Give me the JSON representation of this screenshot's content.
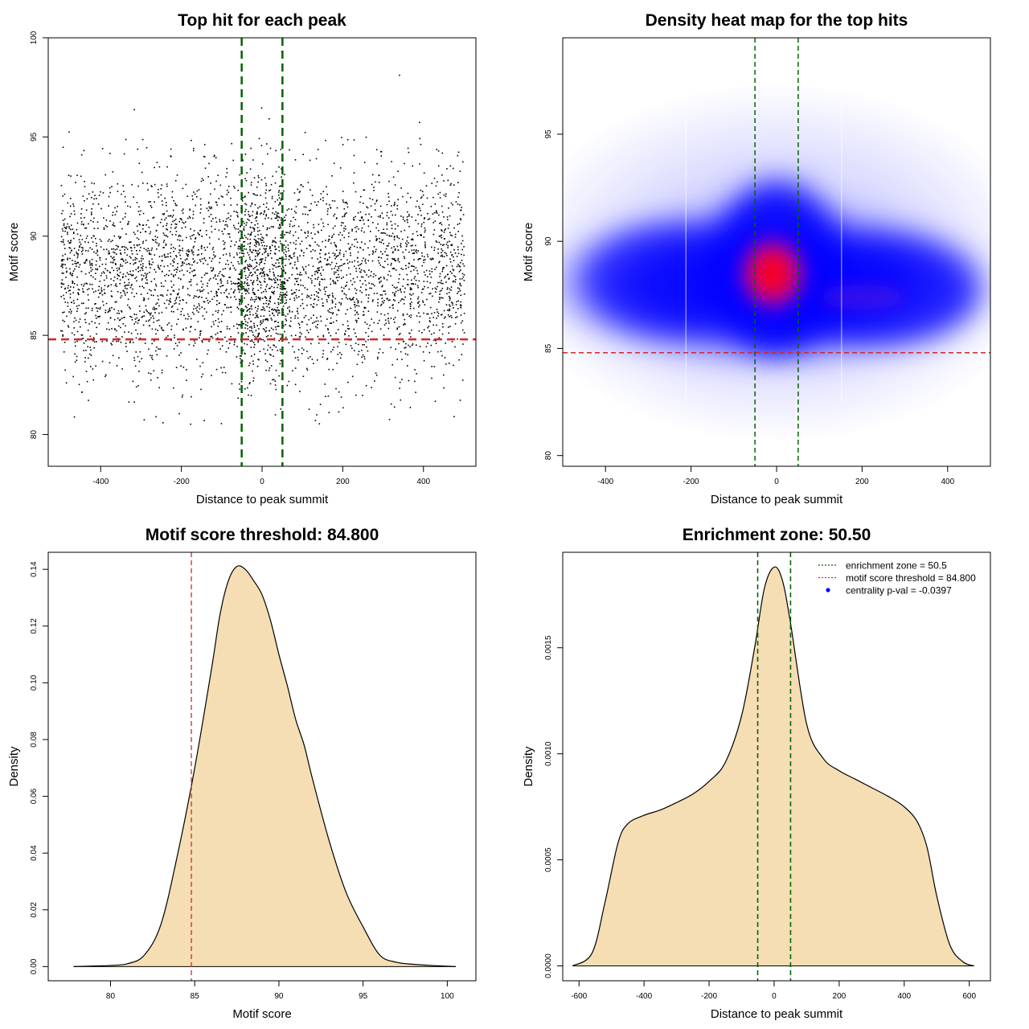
{
  "chart_data": [
    {
      "id": "p1",
      "type": "scatter",
      "title": "Top hit for each peak",
      "xlabel": "Distance to peak summit",
      "ylabel": "Motif score",
      "xlim": [
        -530,
        530
      ],
      "ylim": [
        78.4,
        100
      ],
      "xticks": [
        -400,
        -200,
        0,
        200,
        400
      ],
      "yticks": [
        80,
        85,
        90,
        95,
        100
      ],
      "point_summary": {
        "n_points": 4000,
        "x_range": [
          -500,
          500
        ],
        "score_center": 88.2,
        "score_sd": 2.6,
        "central_enrichment_range": [
          -60,
          60
        ]
      },
      "vlines": [
        -50.5,
        50.5
      ],
      "hline": 84.8,
      "colors": {
        "points": "#000000",
        "vlines": "#006400",
        "hline": "#d62728"
      }
    },
    {
      "id": "p2",
      "type": "heatmap",
      "title": "Density heat map for the top hits",
      "xlabel": "Distance to peak summit",
      "ylabel": "Motif score",
      "xlim": [
        -500,
        500
      ],
      "ylim": [
        79.5,
        99.5
      ],
      "xticks": [
        -400,
        -200,
        0,
        200,
        400
      ],
      "yticks": [
        80,
        85,
        90,
        95
      ],
      "density_peak": {
        "x": 0,
        "y": 88.5
      },
      "vlines": [
        -50.5,
        50.5
      ],
      "hline": 84.8,
      "colors": {
        "low": "#ffffff",
        "mid": "#0000ff",
        "high": "#ff0000",
        "vlines": "#006400",
        "hline": "#d62728"
      }
    },
    {
      "id": "p3",
      "type": "area",
      "title": "Motif score threshold: 84.800",
      "xlabel": "Motif score",
      "ylabel": "Density",
      "xlim": [
        76.3,
        101.7
      ],
      "ylim": [
        -0.005,
        0.146
      ],
      "xticks": [
        80,
        85,
        90,
        95,
        100
      ],
      "yticks": [
        0.0,
        0.02,
        0.04,
        0.06,
        0.08,
        0.1,
        0.12,
        0.14
      ],
      "x": [
        77.8,
        79,
        80,
        81,
        82,
        83,
        84,
        85,
        86,
        86.5,
        87,
        87.5,
        88,
        88.5,
        89,
        89.5,
        90,
        90.5,
        91,
        91.5,
        92,
        93,
        94,
        95,
        96,
        97,
        98,
        99,
        100.5
      ],
      "y": [
        0.0,
        0.0002,
        0.0004,
        0.001,
        0.004,
        0.015,
        0.04,
        0.07,
        0.105,
        0.124,
        0.136,
        0.141,
        0.14,
        0.136,
        0.131,
        0.122,
        0.11,
        0.099,
        0.087,
        0.078,
        0.066,
        0.044,
        0.026,
        0.014,
        0.004,
        0.0015,
        0.0008,
        0.0004,
        0.0
      ],
      "vline": 84.8,
      "colors": {
        "fill": "#f5deb3",
        "line": "#000000",
        "vline": "#d62728"
      }
    },
    {
      "id": "p4",
      "type": "area",
      "title": "Enrichment zone: 50.50",
      "xlabel": "Distance to peak summit",
      "ylabel": "Density",
      "xlim": [
        -650,
        665
      ],
      "ylim": [
        -7e-05,
        0.00195
      ],
      "xticks": [
        -600,
        -400,
        -200,
        0,
        200,
        400,
        600
      ],
      "yticks": [
        0.0,
        0.0005,
        0.001,
        0.0015
      ],
      "ytick_labels": [
        "0.0000",
        "0.0005",
        "0.0010",
        "0.0015"
      ],
      "x": [
        -620,
        -560,
        -520,
        -480,
        -450,
        -400,
        -350,
        -300,
        -250,
        -200,
        -150,
        -100,
        -60,
        -30,
        0,
        25,
        50,
        100,
        150,
        200,
        250,
        300,
        350,
        400,
        440,
        470,
        500,
        540,
        580,
        615
      ],
      "y": [
        0,
        6e-05,
        0.0003,
        0.00058,
        0.00067,
        0.00071,
        0.000735,
        0.00077,
        0.00081,
        0.00087,
        0.00096,
        0.00118,
        0.0015,
        0.00178,
        0.00188,
        0.00182,
        0.00162,
        0.00114,
        0.00098,
        0.00092,
        0.00088,
        0.00084,
        0.0008,
        0.00075,
        0.00068,
        0.00056,
        0.00033,
        0.0001,
        2e-05,
        0
      ],
      "vlines": [
        -50.5,
        50.5
      ],
      "legend": {
        "position": "top-right",
        "entries": [
          {
            "label": "enrichment zone = 50.5",
            "style": "dotted-line",
            "color": "#006400"
          },
          {
            "label": "motif score threshold = 84.800",
            "style": "dotted-line",
            "color": "#d62728"
          },
          {
            "label": "centrality p-val = -0.0397",
            "style": "point",
            "color": "#0000ff"
          }
        ]
      },
      "colors": {
        "fill": "#f5deb3",
        "line": "#000000",
        "vlines": "#006400"
      }
    }
  ]
}
